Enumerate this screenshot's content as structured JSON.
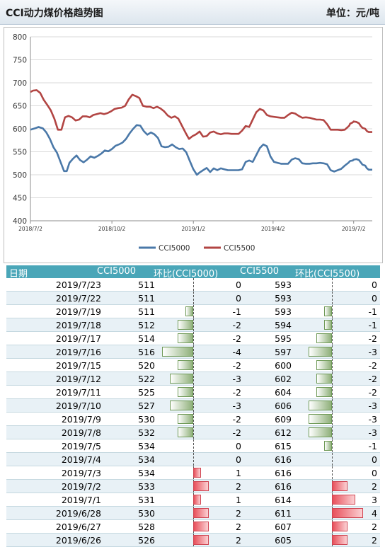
{
  "header": {
    "title": "CCI动力煤价格趋势图",
    "unit": "单位：元/吨"
  },
  "chart_data": {
    "type": "line",
    "ylim": [
      400,
      800
    ],
    "yticks": [
      400,
      450,
      500,
      550,
      600,
      650,
      700,
      750,
      800
    ],
    "xlim": [
      "2018-07-02",
      "2019-07-23"
    ],
    "xticks": [
      {
        "date": "2018-07-02",
        "label": "2018/7/2"
      },
      {
        "date": "2018-10-02",
        "label": "2018/10/2"
      },
      {
        "date": "2019-01-02",
        "label": "2019/1/2"
      },
      {
        "date": "2019-04-02",
        "label": "2019/4/2"
      },
      {
        "date": "2019-07-02",
        "label": "2019/7/2"
      }
    ],
    "grid": "horizontal",
    "legend": "bottom",
    "series": [
      {
        "name": "CCI5000",
        "color": "#4a78a8",
        "points": [
          [
            "2018-07-02",
            598
          ],
          [
            "2018-07-07",
            601
          ],
          [
            "2018-07-11",
            604
          ],
          [
            "2018-07-16",
            601
          ],
          [
            "2018-07-20",
            592
          ],
          [
            "2018-07-24",
            578
          ],
          [
            "2018-07-28",
            560
          ],
          [
            "2018-08-01",
            548
          ],
          [
            "2018-08-05",
            528
          ],
          [
            "2018-08-09",
            508
          ],
          [
            "2018-08-12",
            508
          ],
          [
            "2018-08-15",
            526
          ],
          [
            "2018-08-19",
            535
          ],
          [
            "2018-08-23",
            542
          ],
          [
            "2018-08-27",
            532
          ],
          [
            "2018-08-31",
            527
          ],
          [
            "2018-09-04",
            533
          ],
          [
            "2018-09-08",
            540
          ],
          [
            "2018-09-12",
            537
          ],
          [
            "2018-09-16",
            541
          ],
          [
            "2018-09-20",
            546
          ],
          [
            "2018-09-24",
            553
          ],
          [
            "2018-09-28",
            551
          ],
          [
            "2018-10-02",
            556
          ],
          [
            "2018-10-06",
            563
          ],
          [
            "2018-10-10",
            566
          ],
          [
            "2018-10-14",
            570
          ],
          [
            "2018-10-18",
            578
          ],
          [
            "2018-10-22",
            590
          ],
          [
            "2018-10-26",
            600
          ],
          [
            "2018-10-30",
            608
          ],
          [
            "2018-11-03",
            607
          ],
          [
            "2018-11-07",
            595
          ],
          [
            "2018-11-11",
            587
          ],
          [
            "2018-11-15",
            592
          ],
          [
            "2018-11-19",
            588
          ],
          [
            "2018-11-23",
            580
          ],
          [
            "2018-11-27",
            562
          ],
          [
            "2018-12-01",
            560
          ],
          [
            "2018-12-05",
            561
          ],
          [
            "2018-12-09",
            566
          ],
          [
            "2018-12-13",
            560
          ],
          [
            "2018-12-17",
            556
          ],
          [
            "2018-12-21",
            557
          ],
          [
            "2018-12-25",
            549
          ],
          [
            "2018-12-29",
            530
          ],
          [
            "2019-01-02",
            512
          ],
          [
            "2019-01-06",
            500
          ],
          [
            "2019-01-09",
            505
          ],
          [
            "2019-01-13",
            510
          ],
          [
            "2019-01-17",
            515
          ],
          [
            "2019-01-21",
            506
          ],
          [
            "2019-01-25",
            514
          ],
          [
            "2019-01-29",
            510
          ],
          [
            "2019-02-02",
            514
          ],
          [
            "2019-02-06",
            512
          ],
          [
            "2019-02-10",
            510
          ],
          [
            "2019-02-14",
            510
          ],
          [
            "2019-02-18",
            510
          ],
          [
            "2019-02-22",
            510
          ],
          [
            "2019-02-26",
            512
          ],
          [
            "2019-03-02",
            528
          ],
          [
            "2019-03-06",
            531
          ],
          [
            "2019-03-10",
            528
          ],
          [
            "2019-03-14",
            543
          ],
          [
            "2019-03-18",
            558
          ],
          [
            "2019-03-22",
            566
          ],
          [
            "2019-03-26",
            562
          ],
          [
            "2019-03-30",
            540
          ],
          [
            "2019-04-03",
            528
          ],
          [
            "2019-04-07",
            526
          ],
          [
            "2019-04-11",
            524
          ],
          [
            "2019-04-15",
            524
          ],
          [
            "2019-04-19",
            524
          ],
          [
            "2019-04-23",
            533
          ],
          [
            "2019-04-27",
            536
          ],
          [
            "2019-05-01",
            534
          ],
          [
            "2019-05-05",
            525
          ],
          [
            "2019-05-09",
            524
          ],
          [
            "2019-05-13",
            524
          ],
          [
            "2019-05-17",
            525
          ],
          [
            "2019-05-21",
            525
          ],
          [
            "2019-05-25",
            526
          ],
          [
            "2019-05-29",
            525
          ],
          [
            "2019-06-02",
            523
          ],
          [
            "2019-06-06",
            510
          ],
          [
            "2019-06-10",
            507
          ],
          [
            "2019-06-14",
            510
          ],
          [
            "2019-06-18",
            513
          ],
          [
            "2019-06-22",
            520
          ],
          [
            "2019-06-26",
            526
          ],
          [
            "2019-06-28",
            530
          ],
          [
            "2019-07-01",
            531
          ],
          [
            "2019-07-02",
            533
          ],
          [
            "2019-07-05",
            534
          ],
          [
            "2019-07-08",
            532
          ],
          [
            "2019-07-10",
            527
          ],
          [
            "2019-07-12",
            522
          ],
          [
            "2019-07-15",
            520
          ],
          [
            "2019-07-17",
            514
          ],
          [
            "2019-07-19",
            511
          ],
          [
            "2019-07-23",
            511
          ]
        ]
      },
      {
        "name": "CCI5500",
        "color": "#b24543",
        "points": [
          [
            "2018-07-02",
            680
          ],
          [
            "2018-07-05",
            683
          ],
          [
            "2018-07-09",
            684
          ],
          [
            "2018-07-13",
            678
          ],
          [
            "2018-07-17",
            663
          ],
          [
            "2018-07-21",
            652
          ],
          [
            "2018-07-25",
            640
          ],
          [
            "2018-07-29",
            622
          ],
          [
            "2018-08-02",
            598
          ],
          [
            "2018-08-06",
            598
          ],
          [
            "2018-08-10",
            625
          ],
          [
            "2018-08-14",
            628
          ],
          [
            "2018-08-18",
            625
          ],
          [
            "2018-08-22",
            618
          ],
          [
            "2018-08-26",
            620
          ],
          [
            "2018-08-30",
            627
          ],
          [
            "2018-09-03",
            627
          ],
          [
            "2018-09-07",
            625
          ],
          [
            "2018-09-11",
            630
          ],
          [
            "2018-09-15",
            632
          ],
          [
            "2018-09-19",
            634
          ],
          [
            "2018-09-23",
            632
          ],
          [
            "2018-09-27",
            634
          ],
          [
            "2018-10-01",
            638
          ],
          [
            "2018-10-05",
            643
          ],
          [
            "2018-10-09",
            645
          ],
          [
            "2018-10-13",
            646
          ],
          [
            "2018-10-17",
            650
          ],
          [
            "2018-10-21",
            664
          ],
          [
            "2018-10-25",
            674
          ],
          [
            "2018-10-29",
            671
          ],
          [
            "2018-11-02",
            667
          ],
          [
            "2018-11-06",
            650
          ],
          [
            "2018-11-10",
            648
          ],
          [
            "2018-11-14",
            648
          ],
          [
            "2018-11-18",
            645
          ],
          [
            "2018-11-22",
            648
          ],
          [
            "2018-11-26",
            644
          ],
          [
            "2018-11-30",
            638
          ],
          [
            "2018-12-04",
            629
          ],
          [
            "2018-12-08",
            624
          ],
          [
            "2018-12-12",
            627
          ],
          [
            "2018-12-16",
            622
          ],
          [
            "2018-12-20",
            607
          ],
          [
            "2018-12-24",
            592
          ],
          [
            "2018-12-28",
            578
          ],
          [
            "2019-01-01",
            584
          ],
          [
            "2019-01-05",
            588
          ],
          [
            "2019-01-09",
            594
          ],
          [
            "2019-01-13",
            583
          ],
          [
            "2019-01-17",
            584
          ],
          [
            "2019-01-21",
            592
          ],
          [
            "2019-01-25",
            594
          ],
          [
            "2019-01-29",
            590
          ],
          [
            "2019-02-02",
            588
          ],
          [
            "2019-02-06",
            590
          ],
          [
            "2019-02-10",
            590
          ],
          [
            "2019-02-14",
            589
          ],
          [
            "2019-02-18",
            589
          ],
          [
            "2019-02-22",
            589
          ],
          [
            "2019-02-26",
            596
          ],
          [
            "2019-03-02",
            606
          ],
          [
            "2019-03-06",
            604
          ],
          [
            "2019-03-10",
            620
          ],
          [
            "2019-03-14",
            636
          ],
          [
            "2019-03-18",
            643
          ],
          [
            "2019-03-22",
            640
          ],
          [
            "2019-03-26",
            630
          ],
          [
            "2019-03-30",
            627
          ],
          [
            "2019-04-03",
            626
          ],
          [
            "2019-04-07",
            625
          ],
          [
            "2019-04-11",
            624
          ],
          [
            "2019-04-15",
            624
          ],
          [
            "2019-04-19",
            630
          ],
          [
            "2019-04-23",
            635
          ],
          [
            "2019-04-27",
            633
          ],
          [
            "2019-05-01",
            628
          ],
          [
            "2019-05-05",
            624
          ],
          [
            "2019-05-09",
            625
          ],
          [
            "2019-05-13",
            624
          ],
          [
            "2019-05-17",
            622
          ],
          [
            "2019-05-21",
            620
          ],
          [
            "2019-05-25",
            620
          ],
          [
            "2019-05-29",
            619
          ],
          [
            "2019-06-02",
            610
          ],
          [
            "2019-06-06",
            598
          ],
          [
            "2019-06-10",
            598
          ],
          [
            "2019-06-14",
            598
          ],
          [
            "2019-06-18",
            597
          ],
          [
            "2019-06-22",
            598
          ],
          [
            "2019-06-26",
            605
          ],
          [
            "2019-06-27",
            607
          ],
          [
            "2019-06-28",
            611
          ],
          [
            "2019-07-01",
            614
          ],
          [
            "2019-07-02",
            616
          ],
          [
            "2019-07-05",
            615
          ],
          [
            "2019-07-08",
            612
          ],
          [
            "2019-07-10",
            606
          ],
          [
            "2019-07-12",
            602
          ],
          [
            "2019-07-15",
            600
          ],
          [
            "2019-07-17",
            595
          ],
          [
            "2019-07-19",
            593
          ],
          [
            "2019-07-23",
            593
          ]
        ]
      }
    ]
  },
  "table": {
    "headers": {
      "date": "日期",
      "v1": "CCI5000",
      "d1": "环比(CCI5000)",
      "v2": "CCI5500",
      "d2": "环比(CCI5500)"
    },
    "rows": [
      {
        "date": "2019/7/23",
        "v1": "511",
        "d1": "0",
        "v2": "593",
        "d2": "0"
      },
      {
        "date": "2019/7/22",
        "v1": "511",
        "d1": "0",
        "v2": "593",
        "d2": "0"
      },
      {
        "date": "2019/7/19",
        "v1": "511",
        "d1": "-1",
        "v2": "593",
        "d2": "-1"
      },
      {
        "date": "2019/7/18",
        "v1": "512",
        "d1": "-2",
        "v2": "594",
        "d2": "-1"
      },
      {
        "date": "2019/7/17",
        "v1": "514",
        "d1": "-2",
        "v2": "595",
        "d2": "-2"
      },
      {
        "date": "2019/7/16",
        "v1": "516",
        "d1": "-4",
        "v2": "597",
        "d2": "-3"
      },
      {
        "date": "2019/7/15",
        "v1": "520",
        "d1": "-2",
        "v2": "600",
        "d2": "-2"
      },
      {
        "date": "2019/7/12",
        "v1": "522",
        "d1": "-3",
        "v2": "602",
        "d2": "-2"
      },
      {
        "date": "2019/7/11",
        "v1": "525",
        "d1": "-2",
        "v2": "604",
        "d2": "-2"
      },
      {
        "date": "2019/7/10",
        "v1": "527",
        "d1": "-3",
        "v2": "606",
        "d2": "-3"
      },
      {
        "date": "2019/7/9",
        "v1": "530",
        "d1": "-2",
        "v2": "609",
        "d2": "-3"
      },
      {
        "date": "2019/7/8",
        "v1": "532",
        "d1": "-2",
        "v2": "612",
        "d2": "-3"
      },
      {
        "date": "2019/7/5",
        "v1": "534",
        "d1": "0",
        "v2": "615",
        "d2": "-1"
      },
      {
        "date": "2019/7/4",
        "v1": "534",
        "d1": "0",
        "v2": "616",
        "d2": "0"
      },
      {
        "date": "2019/7/3",
        "v1": "534",
        "d1": "1",
        "v2": "616",
        "d2": "0"
      },
      {
        "date": "2019/7/2",
        "v1": "533",
        "d1": "2",
        "v2": "616",
        "d2": "2"
      },
      {
        "date": "2019/7/1",
        "v1": "531",
        "d1": "1",
        "v2": "614",
        "d2": "3"
      },
      {
        "date": "2019/6/28",
        "v1": "530",
        "d1": "2",
        "v2": "611",
        "d2": "4"
      },
      {
        "date": "2019/6/27",
        "v1": "528",
        "d1": "2",
        "v2": "607",
        "d2": "2"
      },
      {
        "date": "2019/6/26",
        "v1": "526",
        "d1": "2",
        "v2": "605",
        "d2": "2"
      }
    ]
  }
}
